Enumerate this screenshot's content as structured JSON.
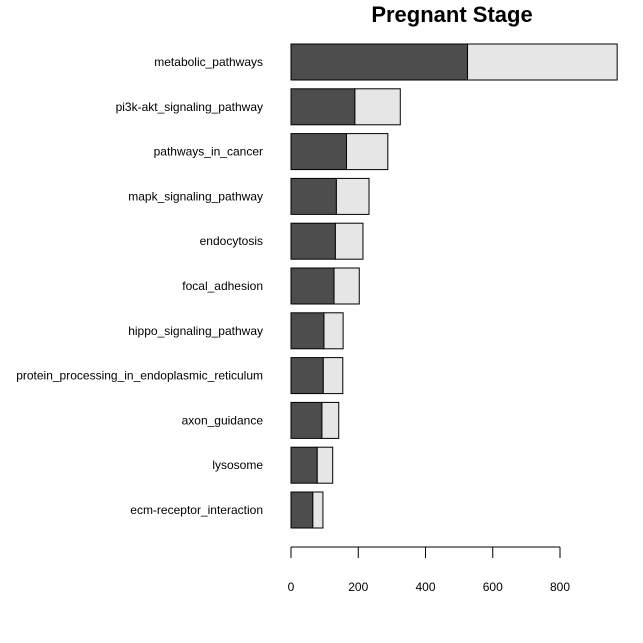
{
  "chart_data": {
    "type": "bar",
    "orientation": "horizontal",
    "stacked": true,
    "title": "Pregnant Stage",
    "xlabel": "",
    "ylabel": "",
    "categories": [
      "metabolic_pathways",
      "pi3k-akt_signaling_pathway",
      "pathways_in_cancer",
      "mapk_signaling_pathway",
      "endocytosis",
      "focal_adhesion",
      "hippo_signaling_pathway",
      "protein_processing_in_endoplasmic_reticulum",
      "axon_guidance",
      "lysosome",
      "ecm-receptor_interaction"
    ],
    "series": [
      {
        "name": "dark",
        "color": "#4d4d4d",
        "values": [
          525,
          190,
          165,
          135,
          132,
          128,
          98,
          96,
          92,
          78,
          65
        ]
      },
      {
        "name": "light",
        "color": "#e6e6e6",
        "values": [
          445,
          135,
          123,
          97,
          82,
          75,
          57,
          58,
          50,
          46,
          30
        ]
      }
    ],
    "xlim": [
      0,
      970
    ],
    "xticks": [
      0,
      200,
      400,
      600,
      800
    ],
    "grid": false,
    "legend": "none"
  }
}
